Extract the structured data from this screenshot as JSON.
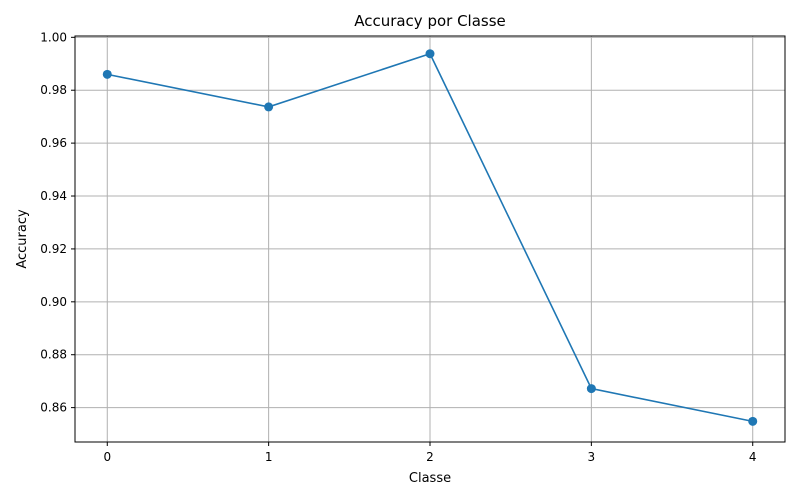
{
  "chart_data": {
    "type": "line",
    "title": "Accuracy por Classe",
    "xlabel": "Classe",
    "ylabel": "Accuracy",
    "x": [
      0,
      1,
      2,
      3,
      4
    ],
    "series": [
      {
        "values": [
          0.986,
          0.9737,
          0.9938,
          0.8672,
          0.8548
        ],
        "color": "#1f77b4",
        "marker": "circle"
      }
    ],
    "xticks": [
      "0",
      "1",
      "2",
      "3",
      "4"
    ],
    "yticks": [
      "0.86",
      "0.88",
      "0.90",
      "0.92",
      "0.94",
      "0.96",
      "0.98",
      "1.00"
    ],
    "xlim": [
      -0.2,
      4.2
    ],
    "ylim": [
      0.847,
      1.0005
    ],
    "grid": true,
    "legend": "none"
  }
}
